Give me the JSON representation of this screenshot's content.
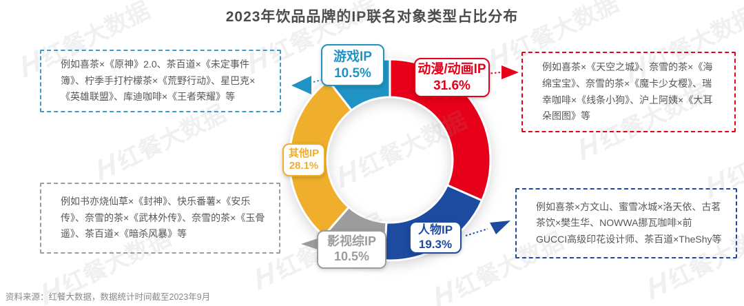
{
  "title": "2023年饮品品牌的IP联名对象类型占比分布",
  "source": "资料来源：红餐大数据，数据统计时间截至2023年9月",
  "watermark": "红餐大数据",
  "colors": {
    "anime_red": "#e60019",
    "person_navy": "#1c4ba0",
    "film_gray": "#9c9c9c",
    "other_yellow": "#efae2c",
    "game_cyan": "#2093c5",
    "example_box_blue": "#3d9ad1"
  },
  "chart_data": {
    "type": "pie",
    "subtype": "donut",
    "start_angle_deg": 0,
    "direction": "clockwise",
    "title": "2023年饮品品牌的IP联名对象类型占比分布",
    "legend_position": "callout-labels",
    "segments": [
      {
        "key": "anime",
        "label": "动漫/动画IP",
        "pct_text": "31.6%",
        "value": 31.6,
        "color": "#e60019"
      },
      {
        "key": "person",
        "label": "人物IP",
        "pct_text": "19.3%",
        "value": 19.3,
        "color": "#1c4ba0"
      },
      {
        "key": "film",
        "label": "影视综IP",
        "pct_text": "10.5%",
        "value": 10.5,
        "color": "#9c9c9c"
      },
      {
        "key": "other",
        "label": "其他IP",
        "pct_text": "28.1%",
        "value": 28.1,
        "color": "#efae2c"
      },
      {
        "key": "game",
        "label": "游戏IP",
        "pct_text": "10.5%",
        "value": 10.5,
        "color": "#2093c5"
      }
    ]
  },
  "examples": {
    "game": {
      "text": "例如喜茶×《原神》2.0、茶百道×《未定事件簿》、柠季手打柠檬茶×《荒野行动》、星巴克×《英雄联盟》、库迪咖啡×《王者荣耀》等"
    },
    "anime": {
      "text": "例如喜茶×《天空之城》、奈雪的茶×《海绵宝宝》、奈雪的茶×《魔卡少女樱》、瑞幸咖啡×《线条小狗》、沪上阿姨×《大耳朵图图》等"
    },
    "film": {
      "text": "例如书亦烧仙草×《封神》、快乐番薯×《安乐传》、奈雪的茶×《武林外传》、奈雪的茶×《玉骨遥》、茶百道×《暗杀风暴》等"
    },
    "person": {
      "text": "例如喜茶×方文山、蜜雪冰城×洛天依、古茗茶饮×樊生华、NOWWA挪瓦咖啡×前GUCCI高级印花设计师、茶百道×TheShy等"
    }
  }
}
